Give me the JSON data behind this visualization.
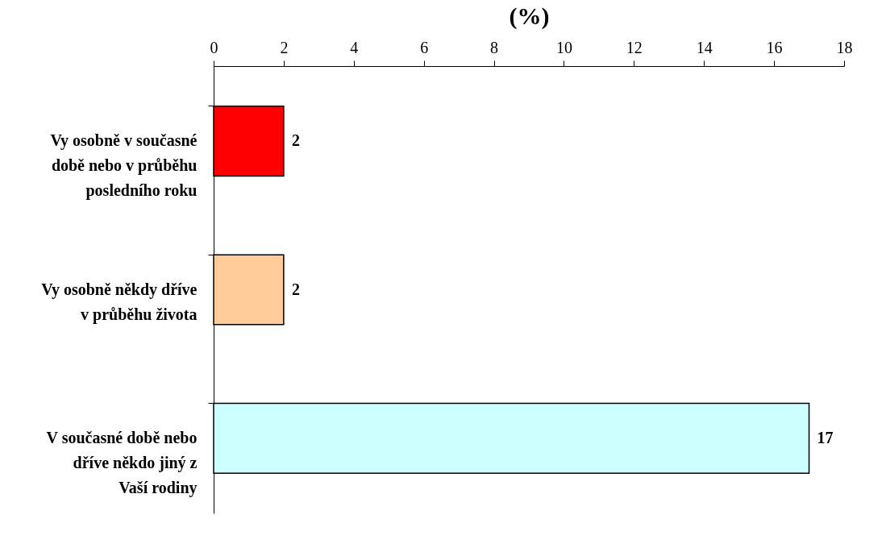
{
  "chart_data": {
    "type": "bar",
    "orientation": "horizontal",
    "xlabel": "(%)",
    "categories": [
      "Vy osobně v současné době nebo v průběhu posledního roku",
      "Vy osobně někdy dříve v průběhu života",
      "V současné době nebo dříve někdo jiný z Vaší rodiny"
    ],
    "values": [
      2,
      2,
      17
    ],
    "colors": [
      "#ff0000",
      "#ffcc99",
      "#ccffff"
    ],
    "xlim": [
      0,
      18
    ],
    "xticks": [
      0,
      2,
      4,
      6,
      8,
      10,
      12,
      14,
      16,
      18
    ],
    "grid": false,
    "data_labels": true
  }
}
